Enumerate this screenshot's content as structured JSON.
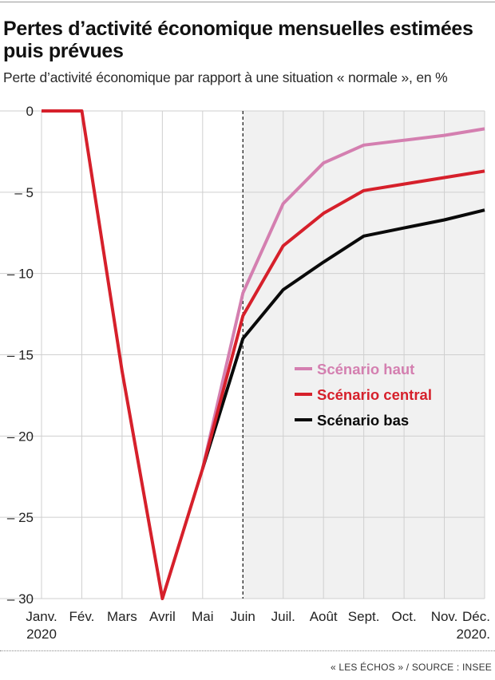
{
  "header": {
    "title": "Pertes d’activité économique mensuelles estimées puis prévues",
    "subtitle": "Perte d’activité économique par rapport à une situation « normale », en %"
  },
  "footer": {
    "source": "« LES ÉCHOS » / SOURCE : INSEE"
  },
  "colors": {
    "haut": "#d47fb0",
    "central": "#d6202b",
    "bas": "#0a0a0a",
    "forecast_shade": "#f1f1f1",
    "grid": "#cfcfcf"
  },
  "chart_data": {
    "type": "line",
    "title": "Pertes d’activité économique mensuelles estimées puis prévues",
    "subtitle": "Perte d’activité économique par rapport à une situation « normale », en %",
    "categories": [
      "Janv.",
      "Fév.",
      "Mars",
      "Avril",
      "Mai",
      "Juin",
      "Juil.",
      "Août",
      "Sept.",
      "Oct.",
      "Nov.",
      "Déc."
    ],
    "x_tick_sublabels": {
      "Janv.": "2020",
      "Déc.": "2020."
    },
    "ylim": [
      -30,
      0
    ],
    "yticks": [
      0,
      -5,
      -10,
      -15,
      -20,
      -25,
      -30
    ],
    "ytick_labels": [
      "0",
      "– 5",
      "– 10",
      "– 15",
      "– 20",
      "– 25",
      "– 30"
    ],
    "forecast_start": "Juin",
    "grid": true,
    "legend_position": "center-right",
    "series": [
      {
        "name": "Scénario haut",
        "color": "#d47fb0",
        "values": [
          null,
          null,
          null,
          null,
          -22,
          -11.2,
          -5.7,
          -3.2,
          -2.1,
          -1.8,
          -1.5,
          -1.1
        ]
      },
      {
        "name": "Scénario central",
        "color": "#d6202b",
        "values": [
          0,
          0,
          -16,
          -30,
          -22,
          -12.6,
          -8.3,
          -6.3,
          -4.9,
          -4.5,
          -4.1,
          -3.7
        ]
      },
      {
        "name": "Scénario bas",
        "color": "#0a0a0a",
        "values": [
          null,
          null,
          null,
          null,
          -22,
          -14,
          -11,
          -9.3,
          -7.7,
          -7.2,
          -6.7,
          -6.1
        ]
      }
    ]
  }
}
